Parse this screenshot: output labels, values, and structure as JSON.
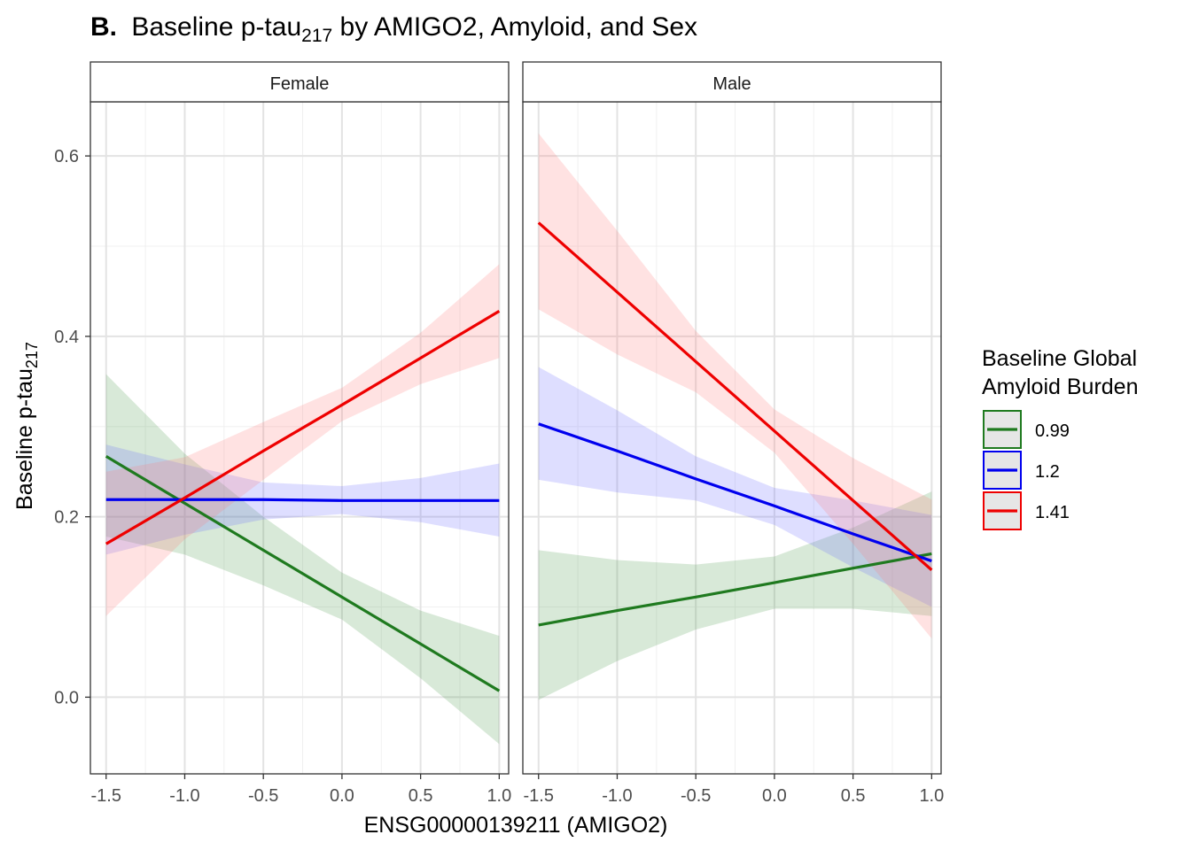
{
  "chart_data": {
    "type": "line",
    "title_prefix": "B.",
    "title_main": "Baseline p-tau",
    "title_sub": "217",
    "title_rest": " by AMIGO2, Amyloid, and Sex",
    "xlabel": "ENSG00000139211 (AMIGO2)",
    "ylabel_main": "Baseline p-tau",
    "ylabel_sub": "217",
    "xlim": [
      -1.6,
      1.06
    ],
    "ylim": [
      -0.085,
      0.66
    ],
    "x_ticks": [
      "-1.5",
      "-1.0",
      "-0.5",
      "0.0",
      "0.5",
      "1.0"
    ],
    "y_ticks": [
      "0.0",
      "0.2",
      "0.4",
      "0.6"
    ],
    "grid": true,
    "legend": {
      "title_line1": "Baseline Global",
      "title_line2": "Amyloid Burden",
      "position": "right",
      "entries": [
        {
          "label": "0.99",
          "color": "#1f7a1f"
        },
        {
          "label": "1.2",
          "color": "#0000ee"
        },
        {
          "label": "1.41",
          "color": "#ee0000"
        }
      ]
    },
    "panels": [
      {
        "label": "Female",
        "series": [
          {
            "name": "0.99",
            "color": "#1f7a1f",
            "fill": "#4d9a4d",
            "x": [
              -1.5,
              -1.0,
              -0.5,
              0.0,
              0.5,
              1.0
            ],
            "y": [
              0.267,
              0.215,
              0.163,
              0.111,
              0.059,
              0.007
            ],
            "lower": [
              0.178,
              0.158,
              0.124,
              0.086,
              0.021,
              -0.052
            ],
            "upper": [
              0.358,
              0.27,
              0.2,
              0.138,
              0.096,
              0.068
            ]
          },
          {
            "name": "1.2",
            "color": "#0000ee",
            "fill": "#6a6aff",
            "x": [
              -1.5,
              -1.0,
              -0.5,
              0.0,
              0.5,
              1.0
            ],
            "y": [
              0.219,
              0.219,
              0.219,
              0.218,
              0.218,
              0.218
            ],
            "lower": [
              0.158,
              0.18,
              0.197,
              0.203,
              0.194,
              0.178
            ],
            "upper": [
              0.28,
              0.258,
              0.238,
              0.234,
              0.243,
              0.259
            ]
          },
          {
            "name": "1.41",
            "color": "#ee0000",
            "fill": "#ff7a7a",
            "x": [
              -1.5,
              -1.0,
              -0.5,
              0.0,
              0.5,
              1.0
            ],
            "y": [
              0.17,
              0.221,
              0.273,
              0.324,
              0.376,
              0.428
            ],
            "lower": [
              0.09,
              0.175,
              0.241,
              0.306,
              0.347,
              0.376
            ],
            "upper": [
              0.25,
              0.266,
              0.305,
              0.343,
              0.404,
              0.48
            ]
          }
        ]
      },
      {
        "label": "Male",
        "series": [
          {
            "name": "0.99",
            "color": "#1f7a1f",
            "fill": "#4d9a4d",
            "x": [
              -1.5,
              -1.0,
              -0.5,
              0.0,
              0.5,
              1.0
            ],
            "y": [
              0.08,
              0.096,
              0.111,
              0.127,
              0.143,
              0.159
            ],
            "lower": [
              -0.003,
              0.04,
              0.075,
              0.098,
              0.098,
              0.09
            ],
            "upper": [
              0.163,
              0.152,
              0.147,
              0.156,
              0.188,
              0.228
            ]
          },
          {
            "name": "1.2",
            "color": "#0000ee",
            "fill": "#6a6aff",
            "x": [
              -1.5,
              -1.0,
              -0.5,
              0.0,
              0.5,
              1.0
            ],
            "y": [
              0.303,
              0.273,
              0.242,
              0.212,
              0.181,
              0.151
            ],
            "lower": [
              0.241,
              0.227,
              0.218,
              0.191,
              0.144,
              0.1
            ],
            "upper": [
              0.366,
              0.318,
              0.267,
              0.232,
              0.218,
              0.202
            ]
          },
          {
            "name": "1.41",
            "color": "#ee0000",
            "fill": "#ff7a7a",
            "x": [
              -1.5,
              -1.0,
              -0.5,
              0.0,
              0.5,
              1.0
            ],
            "y": [
              0.526,
              0.449,
              0.372,
              0.295,
              0.218,
              0.141
            ],
            "lower": [
              0.43,
              0.38,
              0.338,
              0.271,
              0.17,
              0.065
            ],
            "upper": [
              0.625,
              0.517,
              0.406,
              0.319,
              0.265,
              0.219
            ]
          }
        ]
      }
    ]
  }
}
